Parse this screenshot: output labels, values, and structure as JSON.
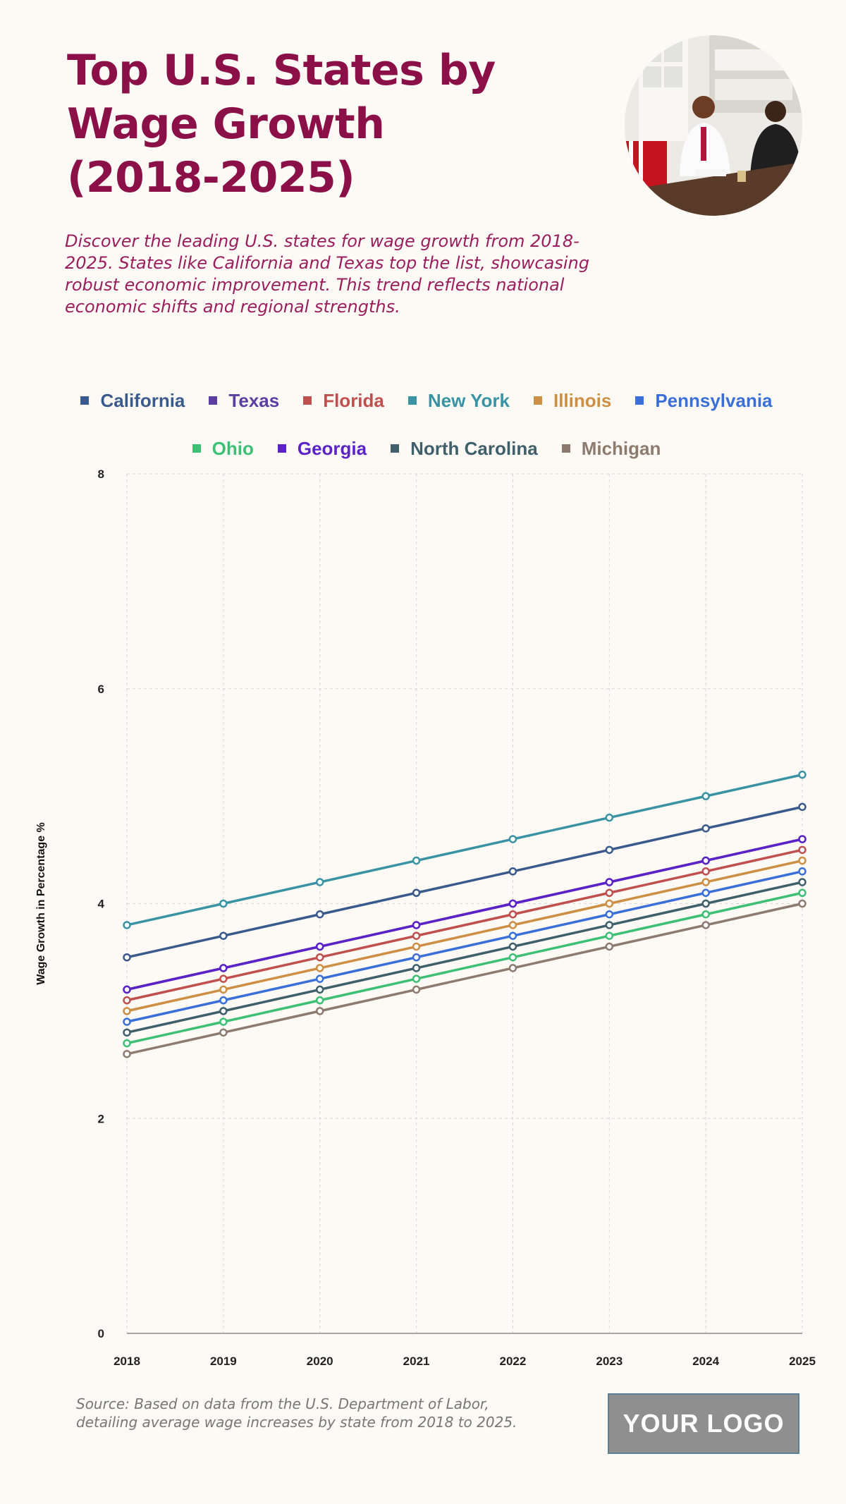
{
  "title": "Top U.S. States by Wage Growth (2018-2025)",
  "subtitle": "Discover the leading U.S. states for wage growth from 2018-2025. States like California and Texas top the list, showcasing robust economic improvement. This trend reflects national economic shifts and regional strengths.",
  "source": "Source: Based on data from the U.S. Department of Labor, detailing average wage increases by state from 2018 to 2025.",
  "logo_text": "YOUR LOGO",
  "colors": {
    "title": "#8c1048",
    "background": "#fdfaf6"
  },
  "chart_data": {
    "type": "line",
    "x": [
      "2018",
      "2019",
      "2020",
      "2021",
      "2022",
      "2023",
      "2024",
      "2025"
    ],
    "ylabel": "Wage Growth in Percentage %",
    "xlabel": "",
    "ylim": [
      0,
      8
    ],
    "yticks": [
      "0",
      "2",
      "4",
      "6",
      "8"
    ],
    "grid": true,
    "legend_position": "top",
    "series": [
      {
        "name": "California",
        "color": "#3b5a8c",
        "values": [
          3.5,
          3.7,
          3.9,
          4.1,
          4.3,
          4.5,
          4.7,
          4.9
        ]
      },
      {
        "name": "Texas",
        "color": "#5a3ea0",
        "values": [
          3.2,
          3.4,
          3.6,
          3.8,
          4.0,
          4.2,
          4.4,
          4.6
        ]
      },
      {
        "name": "Florida",
        "color": "#c0504d",
        "values": [
          3.1,
          3.3,
          3.5,
          3.7,
          3.9,
          4.1,
          4.3,
          4.5
        ]
      },
      {
        "name": "New York",
        "color": "#3a93a3",
        "values": [
          3.8,
          4.0,
          4.2,
          4.4,
          4.6,
          4.8,
          5.0,
          5.2
        ]
      },
      {
        "name": "Illinois",
        "color": "#cc8f44",
        "values": [
          3.0,
          3.2,
          3.4,
          3.6,
          3.8,
          4.0,
          4.2,
          4.4
        ]
      },
      {
        "name": "Pennsylvania",
        "color": "#3a6fd8",
        "values": [
          2.9,
          3.1,
          3.3,
          3.5,
          3.7,
          3.9,
          4.1,
          4.3
        ]
      },
      {
        "name": "Ohio",
        "color": "#3dbf74",
        "values": [
          2.7,
          2.9,
          3.1,
          3.3,
          3.5,
          3.7,
          3.9,
          4.1
        ]
      },
      {
        "name": "Georgia",
        "color": "#5b22c8",
        "values": [
          3.2,
          3.4,
          3.6,
          3.8,
          4.0,
          4.2,
          4.4,
          4.6
        ]
      },
      {
        "name": "North Carolina",
        "color": "#3f5f6b",
        "values": [
          2.8,
          3.0,
          3.2,
          3.4,
          3.6,
          3.8,
          4.0,
          4.2
        ]
      },
      {
        "name": "Michigan",
        "color": "#8e7b70",
        "values": [
          2.6,
          2.8,
          3.0,
          3.2,
          3.4,
          3.6,
          3.8,
          4.0
        ]
      }
    ]
  }
}
